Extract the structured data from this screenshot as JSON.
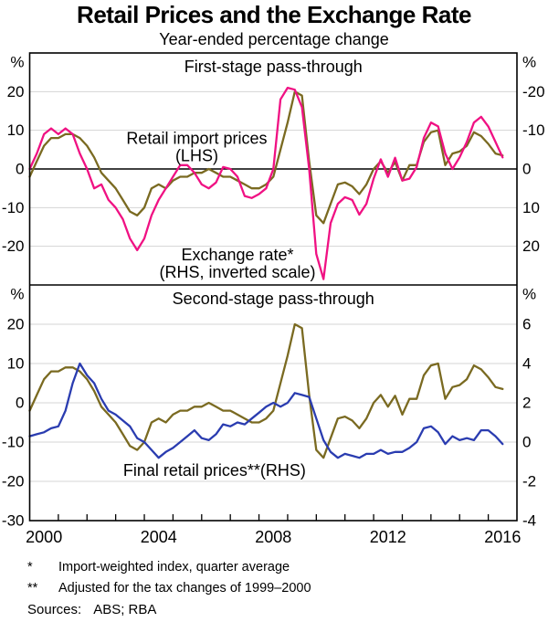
{
  "title": "Retail Prices and the Exchange Rate",
  "subtitle": "Year-ended percentage change",
  "colors": {
    "olive": "#7a6a21",
    "pink": "#f01183",
    "blue": "#2a3cb0",
    "grid": "#d4d4d4",
    "black": "#000000"
  },
  "x_axis": {
    "range": [
      2000,
      2017
    ],
    "ticks": [
      2001,
      2002,
      2003,
      2004,
      2005,
      2006,
      2007,
      2008,
      2009,
      2010,
      2011,
      2012,
      2013,
      2014,
      2015,
      2016
    ],
    "labels": [
      {
        "text": "2000",
        "at": 2000.5
      },
      {
        "text": "2004",
        "at": 2004.5
      },
      {
        "text": "2008",
        "at": 2008.5
      },
      {
        "text": "2012",
        "at": 2012.5
      },
      {
        "text": "2016",
        "at": 2016.5
      }
    ]
  },
  "chart_data": [
    {
      "type": "line",
      "panel_title": "First-stage pass-through",
      "axes": {
        "left": {
          "unit": "%",
          "range": [
            -30,
            30
          ],
          "ticks": [
            20,
            10,
            0,
            -10,
            -20
          ],
          "zero_line": true
        },
        "right": {
          "unit": "%",
          "note": "inverted scale",
          "range": [
            30,
            -30
          ],
          "ticks": [
            {
              "label": "-20",
              "at": 20
            },
            {
              "label": "-10",
              "at": 10
            },
            {
              "label": "0",
              "at": 0
            },
            {
              "label": "10",
              "at": -10
            },
            {
              "label": "20",
              "at": -20
            }
          ]
        }
      },
      "gridlines": [
        20,
        10,
        0,
        -10,
        -20
      ],
      "series": [
        {
          "name": "Retail import prices",
          "axis": "left",
          "color": "olive",
          "x_start": 2000,
          "x_step": 0.25,
          "label": {
            "lines": [
              "Retail import prices",
              "(LHS)"
            ],
            "year": 2005.83,
            "lhs": 7.9
          },
          "values": [
            -2,
            2,
            6,
            8,
            8,
            9,
            9,
            8,
            6,
            3,
            -1,
            -3,
            -5,
            -8,
            -11,
            -12,
            -10,
            -5,
            -4,
            -5,
            -3,
            -2,
            -2,
            -1,
            -1,
            0,
            -1,
            -2,
            -2,
            -3,
            -4,
            -5,
            -5,
            -4,
            -2,
            5,
            12,
            20,
            19,
            2,
            -12,
            -14,
            -9,
            -4,
            -3.5,
            -4.5,
            -6.5,
            -4,
            0,
            2,
            -1,
            1.8,
            -3,
            1,
            1,
            7,
            9.5,
            10,
            1,
            4,
            4.5,
            6,
            9.5,
            8.5,
            6.5,
            4,
            3.5
          ]
        },
        {
          "name": "Exchange rate",
          "axis": "right",
          "color": "pink",
          "x_start": 2000,
          "x_step": 0.25,
          "label": {
            "lines": [
              "Exchange rate*",
              "(RHS, inverted scale)"
            ],
            "year": 2007.25,
            "lhs": -22.2
          },
          "values": [
            0,
            -4,
            -9,
            -10.5,
            -9,
            -10.5,
            -9,
            -4,
            0,
            5,
            4,
            8,
            10,
            13,
            18,
            21,
            18,
            12,
            8,
            5,
            2,
            -1,
            -1,
            1,
            4,
            5,
            3.5,
            -0.5,
            0,
            2,
            7,
            7.5,
            6.5,
            5,
            0,
            -18,
            -21,
            -20.5,
            -16,
            0,
            22,
            28.5,
            14,
            9,
            7.3,
            8,
            11.8,
            9,
            2.5,
            -2.5,
            2,
            -2.9,
            3,
            2.5,
            -0.5,
            -8,
            -12,
            -11,
            -4,
            0,
            -3,
            -7,
            -12,
            -13.5,
            -11,
            -7,
            -3
          ]
        }
      ]
    },
    {
      "type": "line",
      "panel_title": "Second-stage pass-through",
      "axes": {
        "left": {
          "unit": "%",
          "range": [
            -30,
            30
          ],
          "ticks": [
            20,
            10,
            0,
            -10,
            -20,
            -30
          ],
          "zero_line": false
        },
        "right": {
          "unit": "%",
          "range": [
            -4,
            8
          ],
          "ticks": [
            {
              "label": "6",
              "at": 20
            },
            {
              "label": "4",
              "at": 10
            },
            {
              "label": "2",
              "at": 0
            },
            {
              "label": "0",
              "at": -10
            },
            {
              "label": "-2",
              "at": -20
            },
            {
              "label": "-4",
              "at": -30
            }
          ]
        }
      },
      "gridlines": [
        20,
        10,
        0,
        -10,
        -20
      ],
      "series": [
        {
          "name": "Retail import prices",
          "axis": "left",
          "color": "olive",
          "x_start": 2000,
          "x_step": 0.25,
          "values": [
            -2,
            2,
            6,
            8,
            8,
            9,
            9,
            8,
            6,
            3,
            -1,
            -3,
            -5,
            -8,
            -11,
            -12,
            -10,
            -5,
            -4,
            -5,
            -3,
            -2,
            -2,
            -1,
            -1,
            0,
            -1,
            -2,
            -2,
            -3,
            -4,
            -5,
            -5,
            -4,
            -2,
            5,
            12,
            20,
            19,
            2,
            -12,
            -14,
            -9,
            -4,
            -3.5,
            -4.5,
            -6.5,
            -4,
            0,
            2,
            -1,
            1.8,
            -3,
            1,
            1,
            7,
            9.5,
            10,
            1,
            4,
            4.5,
            6,
            9.5,
            8.5,
            6.5,
            4,
            3.5
          ]
        },
        {
          "name": "Final retail prices",
          "axis": "right",
          "color": "blue",
          "x_start": 2000,
          "x_step": 0.25,
          "label": {
            "lines": [
              "Final retail prices**(RHS)"
            ],
            "year": 2006.45,
            "lhs": -17.2
          },
          "values": [
            0.3,
            0.4,
            0.5,
            0.7,
            0.8,
            1.6,
            3,
            4,
            3.4,
            3,
            2.2,
            1.6,
            1.4,
            1.1,
            0.8,
            0.2,
            0,
            -0.4,
            -0.8,
            -0.5,
            -0.3,
            0,
            0.3,
            0.6,
            0.2,
            0.1,
            0.4,
            0.9,
            0.8,
            1,
            0.9,
            1.2,
            1.5,
            1.8,
            2,
            1.8,
            2,
            2.5,
            2.4,
            2.3,
            1.2,
            0.1,
            -0.5,
            -0.8,
            -0.6,
            -0.7,
            -0.8,
            -0.6,
            -0.6,
            -0.4,
            -0.6,
            -0.5,
            -0.5,
            -0.3,
            0,
            0.7,
            0.8,
            0.5,
            -0.1,
            0.3,
            0.1,
            0.2,
            0.1,
            0.6,
            0.6,
            0.3,
            -0.1
          ]
        }
      ]
    }
  ],
  "footnotes": [
    {
      "marker": "*",
      "text": "Import-weighted index, quarter average"
    },
    {
      "marker": "**",
      "text": "Adjusted for the tax changes of 1999–2000"
    }
  ],
  "sources": {
    "label": "Sources:",
    "value": "ABS; RBA"
  }
}
